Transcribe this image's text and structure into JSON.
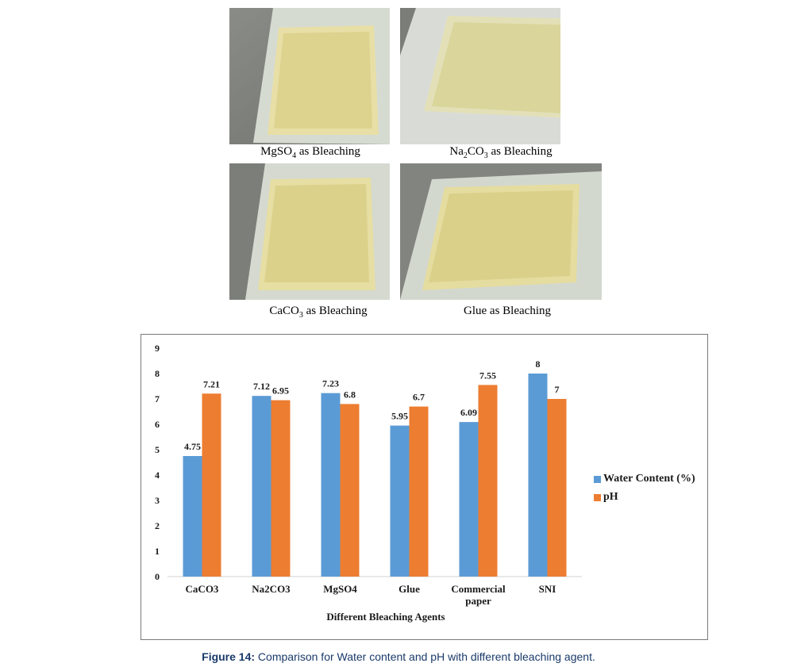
{
  "photos": [
    {
      "caption_pre": "MgSO",
      "caption_sub": "4",
      "caption_mid": "",
      "caption_sub2": "",
      "caption_post": " as Bleaching"
    },
    {
      "caption_pre": "Na",
      "caption_sub": "2",
      "caption_mid": "CO",
      "caption_sub2": "3",
      "caption_post": " as Bleaching"
    },
    {
      "caption_pre": "CaCO",
      "caption_sub": "3",
      "caption_mid": "",
      "caption_sub2": "",
      "caption_post": " as Bleaching"
    },
    {
      "caption_pre": "Glue as Bleaching",
      "caption_sub": "",
      "caption_mid": "",
      "caption_sub2": "",
      "caption_post": ""
    }
  ],
  "figure_caption": {
    "label": "Figure 14:",
    "text": " Comparison for Water content and pH with different bleaching agent."
  },
  "colors": {
    "water": "#5b9bd5",
    "ph": "#ed7d31"
  },
  "chart_data": {
    "type": "bar",
    "categories": [
      "CaCO3",
      "Na2CO3",
      "MgSO4",
      "Glue",
      "Commercial paper",
      "SNI"
    ],
    "category_lines": [
      [
        "CaCO3"
      ],
      [
        "Na2CO3"
      ],
      [
        "MgSO4"
      ],
      [
        "Glue"
      ],
      [
        "Commercial",
        "paper"
      ],
      [
        "SNI"
      ]
    ],
    "series": [
      {
        "name": "Water Content (%)",
        "values": [
          4.75,
          7.12,
          7.23,
          5.95,
          6.09,
          8
        ],
        "labels": [
          "4.75",
          "7.12",
          "7.23",
          "5.95",
          "6.09",
          "8"
        ]
      },
      {
        "name": "pH",
        "values": [
          7.21,
          6.95,
          6.8,
          6.7,
          7.55,
          7
        ],
        "labels": [
          "7.21",
          "6.95",
          "6.8",
          "6.7",
          "7.55",
          "7"
        ]
      }
    ],
    "xlabel": "Different Bleaching Agents",
    "ylabel": "",
    "ylim": [
      0,
      9
    ],
    "yticks": [
      "0",
      "1",
      "2",
      "3",
      "4",
      "5",
      "6",
      "7",
      "8",
      "9"
    ],
    "legend_position": "right",
    "grid": false
  }
}
